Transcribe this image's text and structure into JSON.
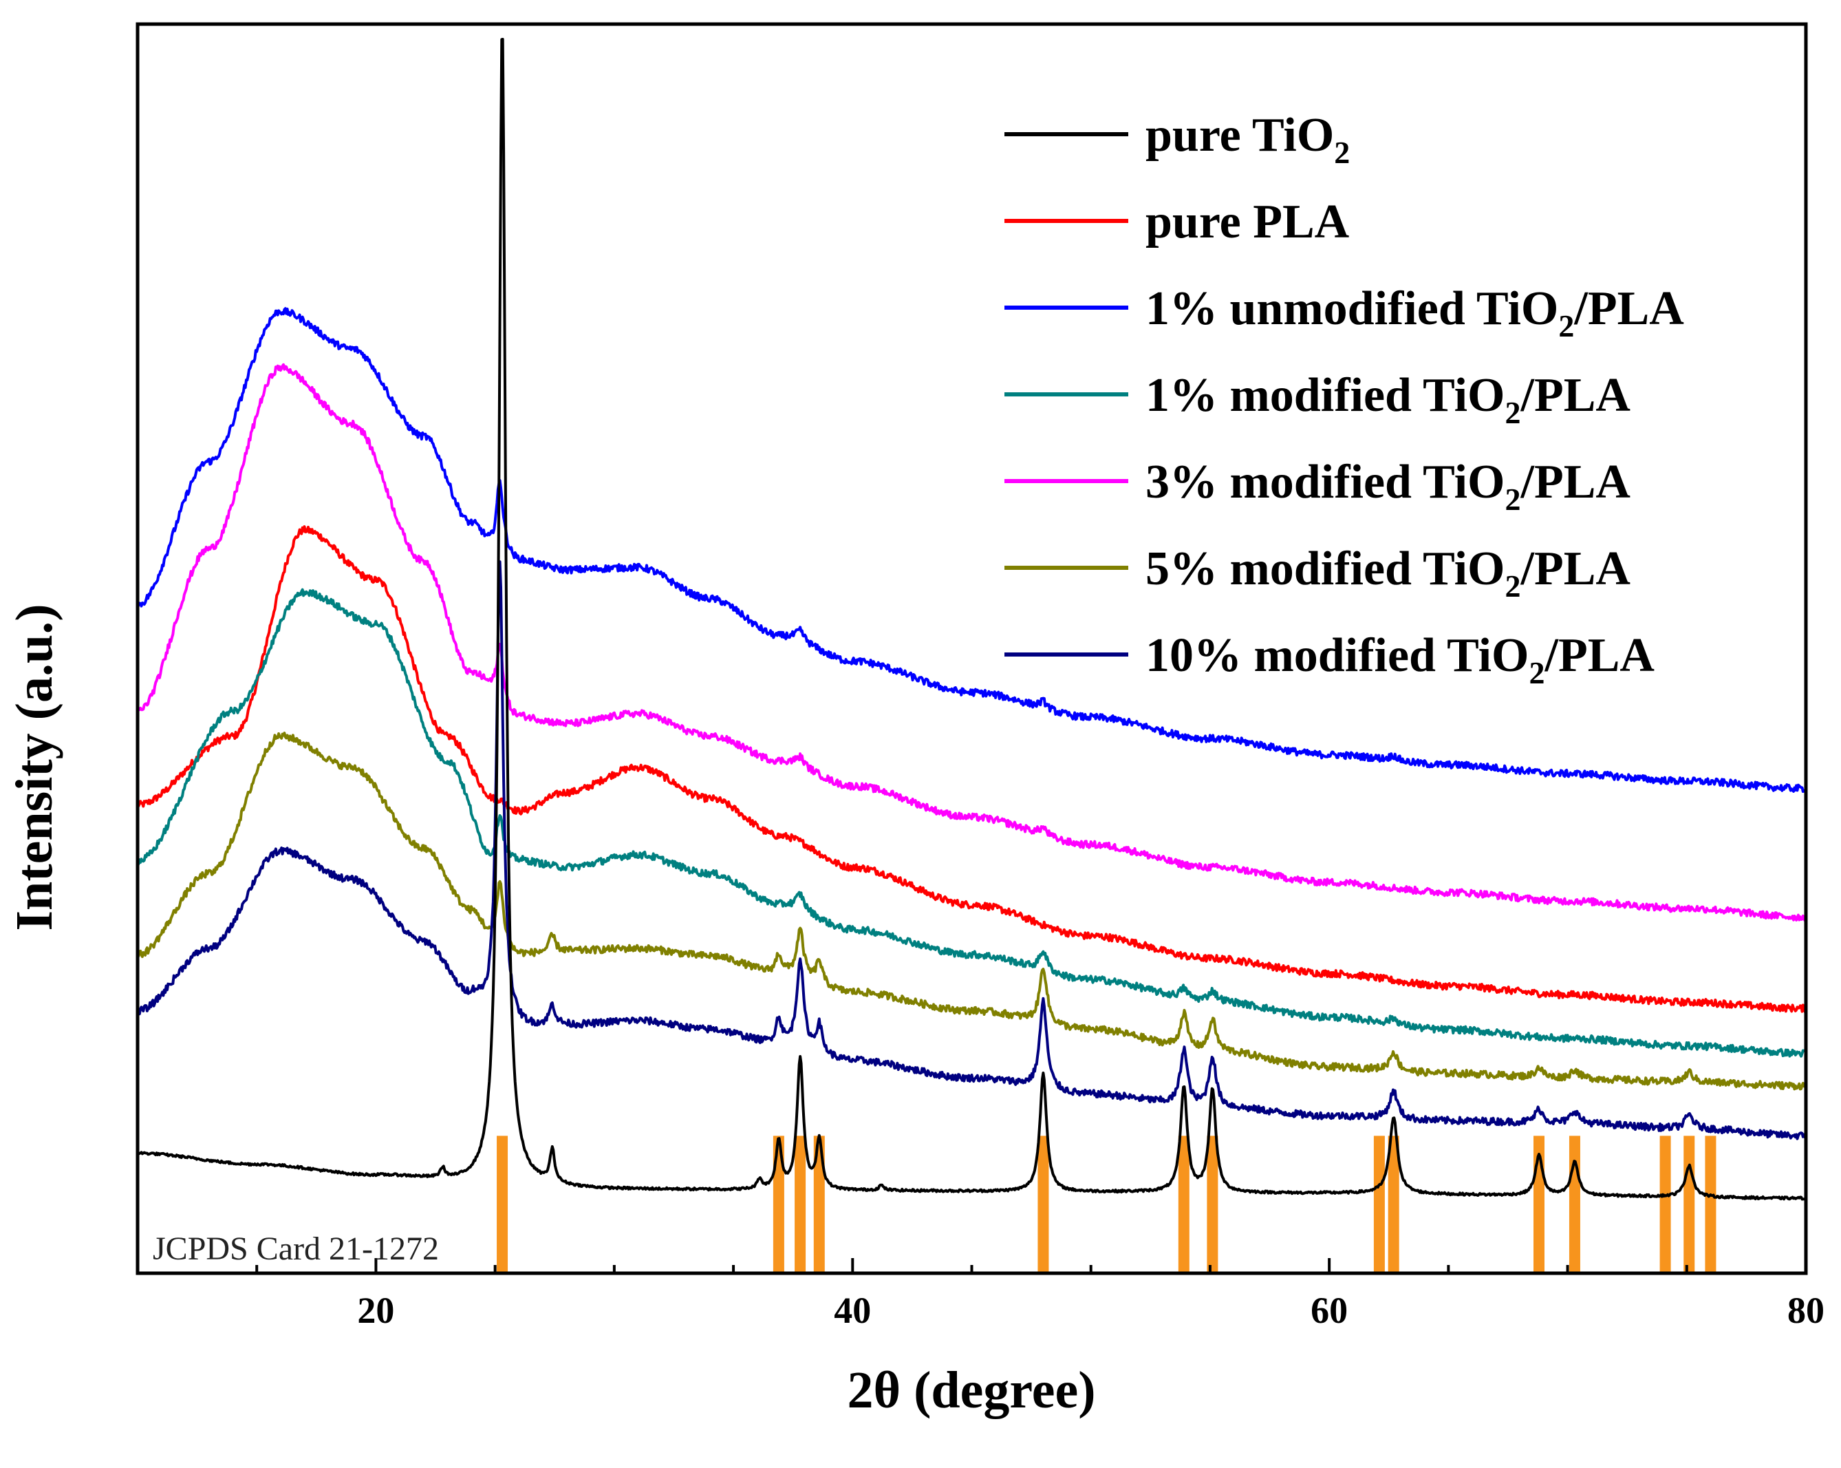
{
  "chart_data": {
    "type": "line",
    "title": "",
    "xlabel": "2θ (degree)",
    "ylabel": "Intensity (a.u.)",
    "xlim": [
      10,
      80
    ],
    "ylim": [
      0,
      100
    ],
    "x_ticks": [
      20,
      40,
      60,
      80
    ],
    "annotation": "JCPDS Card 21-1272",
    "legend_position": "top-right",
    "reference_lines": {
      "name": "JCPDS Card 21-1272",
      "color": "#f7941d",
      "height": 11,
      "positions": [
        25.3,
        36.9,
        37.8,
        38.6,
        48.0,
        53.9,
        55.1,
        62.1,
        62.7,
        68.8,
        70.3,
        74.1,
        75.1,
        76.0
      ]
    },
    "series": [
      {
        "name": "pure TiO2",
        "label_main": "pure TiO",
        "label_sub": "2",
        "label_tail": "",
        "color": "#000000",
        "baseline": [
          [
            10,
            9.6
          ],
          [
            15,
            8.7
          ],
          [
            20,
            7.8
          ],
          [
            25,
            7.0
          ],
          [
            30,
            6.7
          ],
          [
            40,
            6.6
          ],
          [
            50,
            6.5
          ],
          [
            60,
            6.4
          ],
          [
            70,
            6.2
          ],
          [
            80,
            6.0
          ]
        ],
        "amorphous": [],
        "peaks": [
          [
            22.8,
            0.8,
            0.12
          ],
          [
            25.3,
            93,
            0.17
          ],
          [
            27.4,
            2.6,
            0.12
          ],
          [
            36.1,
            0.8,
            0.12
          ],
          [
            36.9,
            3.8,
            0.14
          ],
          [
            37.8,
            10.5,
            0.16
          ],
          [
            38.6,
            4.0,
            0.14
          ],
          [
            41.2,
            0.4,
            0.12
          ],
          [
            48.0,
            9.5,
            0.17
          ],
          [
            53.9,
            8.4,
            0.17
          ],
          [
            55.1,
            8.2,
            0.17
          ],
          [
            62.7,
            6.1,
            0.2
          ],
          [
            68.8,
            3.2,
            0.18
          ],
          [
            70.3,
            2.7,
            0.18
          ],
          [
            75.1,
            2.5,
            0.2
          ]
        ]
      },
      {
        "name": "pure PLA",
        "label_main": "pure PLA",
        "label_sub": "",
        "label_tail": "",
        "color": "#ff0000",
        "baseline": [
          [
            10,
            37.5
          ],
          [
            14,
            43
          ],
          [
            17,
            59.5
          ],
          [
            20,
            55.5
          ],
          [
            23,
            43
          ],
          [
            25,
            38
          ],
          [
            26,
            37
          ],
          [
            28,
            38.5
          ],
          [
            31,
            40.5
          ],
          [
            34,
            38
          ],
          [
            37,
            35
          ],
          [
            40,
            32.5
          ],
          [
            45,
            29.5
          ],
          [
            50,
            27
          ],
          [
            55,
            25.2
          ],
          [
            60,
            24
          ],
          [
            65,
            23
          ],
          [
            70,
            22.3
          ],
          [
            75,
            21.7
          ],
          [
            80,
            21.2
          ]
        ],
        "amorphous": [],
        "peaks": []
      },
      {
        "name": "1% unmodified TiO2/PLA",
        "label_main": "1% unmodified TiO",
        "label_sub": "2",
        "label_tail": "/PLA",
        "color": "#0000ff",
        "baseline": [
          [
            10,
            53.5
          ],
          [
            13,
            65
          ],
          [
            16,
            77
          ],
          [
            19,
            74
          ],
          [
            22,
            67
          ],
          [
            24,
            60
          ],
          [
            25,
            58
          ],
          [
            26,
            57
          ],
          [
            28,
            56.3
          ],
          [
            31,
            56.5
          ],
          [
            34,
            54
          ],
          [
            37,
            51
          ],
          [
            40,
            49
          ],
          [
            45,
            46.5
          ],
          [
            50,
            44.5
          ],
          [
            55,
            42.8
          ],
          [
            60,
            41.5
          ],
          [
            65,
            40.7
          ],
          [
            70,
            40
          ],
          [
            75,
            39.4
          ],
          [
            80,
            38.8
          ]
        ],
        "amorphous": [],
        "peaks": [
          [
            25.2,
            5.5,
            0.17
          ],
          [
            37.8,
            0.8,
            0.2
          ],
          [
            48.0,
            0.6,
            0.2
          ],
          [
            62.7,
            0.4,
            0.2
          ]
        ]
      },
      {
        "name": "1% modified TiO2/PLA",
        "label_main": "1% modified TiO",
        "label_sub": "2",
        "label_tail": "/PLA",
        "color": "#008080",
        "baseline": [
          [
            10,
            33
          ],
          [
            14,
            45
          ],
          [
            17,
            54.5
          ],
          [
            20,
            52
          ],
          [
            23,
            41
          ],
          [
            25,
            32.8
          ],
          [
            26,
            33
          ],
          [
            28,
            32.5
          ],
          [
            31,
            33.5
          ],
          [
            34,
            32
          ],
          [
            37,
            29.5
          ],
          [
            40,
            27.5
          ],
          [
            45,
            25.5
          ],
          [
            50,
            23.5
          ],
          [
            55,
            21.8
          ],
          [
            60,
            20.5
          ],
          [
            65,
            19.5
          ],
          [
            70,
            18.8
          ],
          [
            75,
            18.2
          ],
          [
            80,
            17.6
          ]
        ],
        "amorphous": [],
        "peaks": [
          [
            25.2,
            4,
            0.17
          ],
          [
            37.8,
            1.2,
            0.2
          ],
          [
            48.0,
            1.6,
            0.2
          ],
          [
            53.9,
            0.8,
            0.2
          ],
          [
            55.1,
            0.8,
            0.2
          ],
          [
            62.7,
            0.5,
            0.2
          ]
        ]
      },
      {
        "name": "3% modified TiO2/PLA",
        "label_main": "3% modified TiO",
        "label_sub": "2",
        "label_tail": "/PLA",
        "color": "#ff00ff",
        "baseline": [
          [
            10,
            45
          ],
          [
            13,
            58
          ],
          [
            16,
            72.5
          ],
          [
            19,
            68
          ],
          [
            22,
            57
          ],
          [
            24,
            48
          ],
          [
            26,
            44.5
          ],
          [
            28,
            44
          ],
          [
            31,
            44.8
          ],
          [
            34,
            43
          ],
          [
            37,
            41
          ],
          [
            40,
            39
          ],
          [
            45,
            36.5
          ],
          [
            50,
            34.3
          ],
          [
            55,
            32.5
          ],
          [
            60,
            31.3
          ],
          [
            65,
            30.5
          ],
          [
            70,
            29.8
          ],
          [
            75,
            29.2
          ],
          [
            80,
            28.5
          ]
        ],
        "amorphous": [],
        "peaks": [
          [
            25.2,
            4.5,
            0.17
          ],
          [
            37.8,
            0.7,
            0.2
          ],
          [
            48.0,
            0.6,
            0.2
          ]
        ]
      },
      {
        "name": "5% modified TiO2/PLA",
        "label_main": "5% modified TiO",
        "label_sub": "2",
        "label_tail": "/PLA",
        "color": "#808000",
        "baseline": [
          [
            10,
            25.5
          ],
          [
            13,
            32
          ],
          [
            16,
            43
          ],
          [
            19,
            40.5
          ],
          [
            22,
            34
          ],
          [
            24,
            29
          ],
          [
            25,
            26.5
          ],
          [
            26,
            25.5
          ],
          [
            28,
            25.8
          ],
          [
            31,
            26
          ],
          [
            34,
            25.4
          ],
          [
            37,
            24
          ],
          [
            40,
            22.5
          ],
          [
            45,
            21
          ],
          [
            50,
            19.5
          ],
          [
            55,
            17.8
          ],
          [
            60,
            16.5
          ],
          [
            65,
            16
          ],
          [
            70,
            15.6
          ],
          [
            75,
            15.3
          ],
          [
            80,
            15
          ]
        ],
        "amorphous": [],
        "peaks": [
          [
            25.2,
            5,
            0.17
          ],
          [
            27.4,
            1.3,
            0.15
          ],
          [
            36.9,
            1.5,
            0.15
          ],
          [
            37.8,
            3.7,
            0.17
          ],
          [
            38.6,
            1.8,
            0.15
          ],
          [
            48.0,
            4.5,
            0.18
          ],
          [
            53.9,
            2.8,
            0.18
          ],
          [
            55.1,
            2.5,
            0.18
          ],
          [
            62.7,
            1.5,
            0.2
          ],
          [
            68.8,
            0.8,
            0.2
          ],
          [
            70.3,
            0.7,
            0.2
          ],
          [
            75.1,
            0.8,
            0.2
          ]
        ]
      },
      {
        "name": "10% modified TiO2/PLA",
        "label_main": "10% modified TiO",
        "label_sub": "2",
        "label_tail": "/PLA",
        "color": "#000080",
        "baseline": [
          [
            10,
            21
          ],
          [
            13,
            26
          ],
          [
            16,
            33.8
          ],
          [
            19,
            31.5
          ],
          [
            22,
            26.5
          ],
          [
            24,
            22
          ],
          [
            25,
            20
          ],
          [
            26,
            19.5
          ],
          [
            28,
            19.8
          ],
          [
            31,
            20.2
          ],
          [
            34,
            19.5
          ],
          [
            37,
            18.3
          ],
          [
            40,
            17
          ],
          [
            45,
            15.6
          ],
          [
            50,
            14.3
          ],
          [
            55,
            13.3
          ],
          [
            60,
            12.6
          ],
          [
            65,
            12.2
          ],
          [
            70,
            12
          ],
          [
            75,
            11.6
          ],
          [
            80,
            11
          ]
        ],
        "amorphous": [],
        "peaks": [
          [
            25.2,
            37,
            0.17
          ],
          [
            27.4,
            1.6,
            0.15
          ],
          [
            36.9,
            2,
            0.15
          ],
          [
            37.8,
            7,
            0.17
          ],
          [
            38.6,
            2.2,
            0.15
          ],
          [
            48.0,
            7,
            0.18
          ],
          [
            53.9,
            4.5,
            0.18
          ],
          [
            55.1,
            4,
            0.18
          ],
          [
            62.7,
            2.2,
            0.2
          ],
          [
            68.8,
            1.1,
            0.2
          ],
          [
            70.3,
            1,
            0.2
          ],
          [
            75.1,
            1.1,
            0.2
          ]
        ]
      }
    ]
  }
}
